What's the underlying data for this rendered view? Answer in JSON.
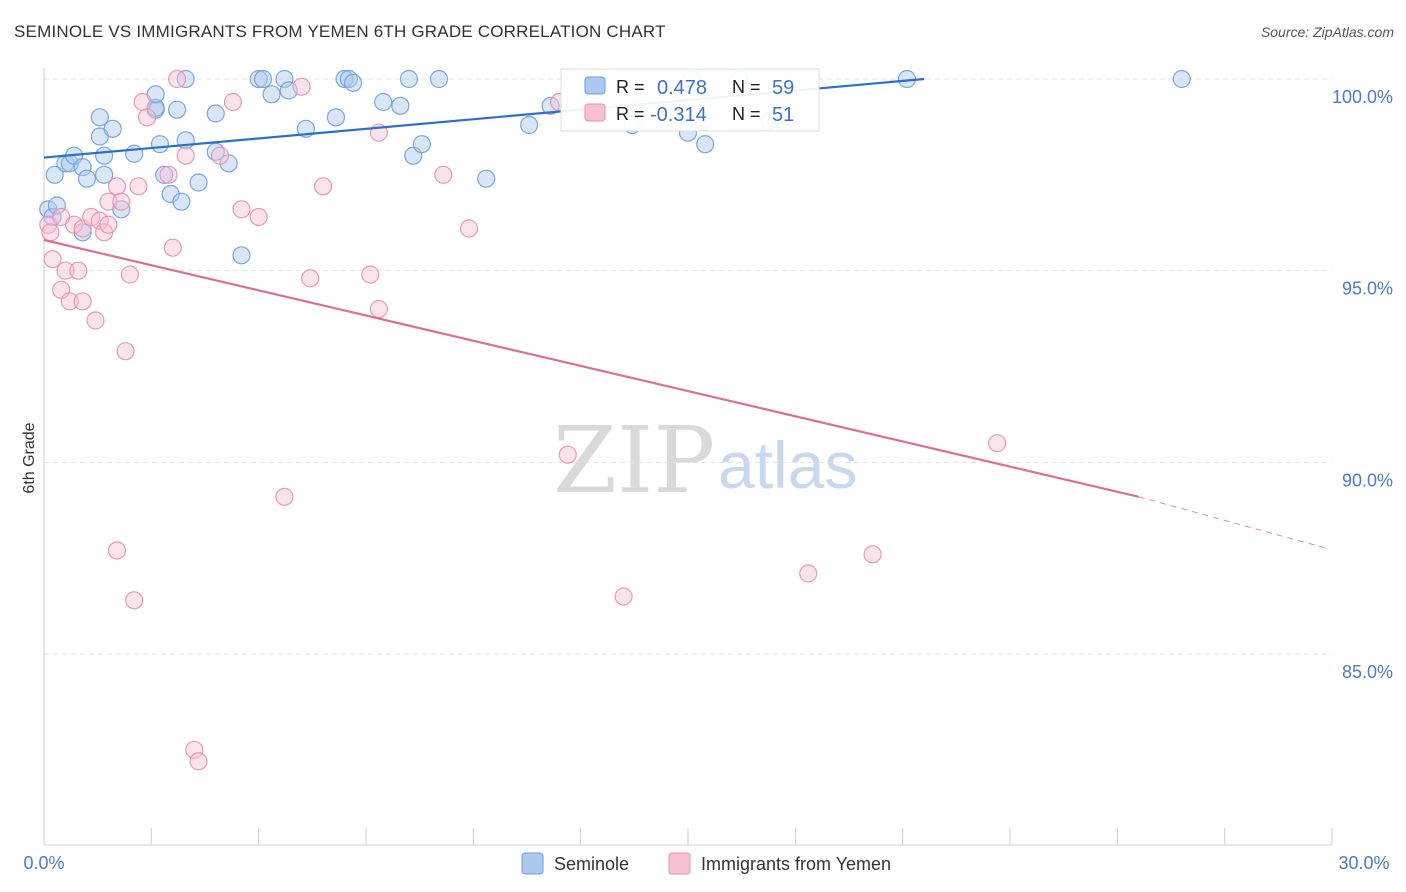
{
  "header": {
    "title": "SEMINOLE VS IMMIGRANTS FROM YEMEN 6TH GRADE CORRELATION CHART",
    "source": "Source: ZipAtlas.com"
  },
  "watermark": {
    "zip": "ZIP",
    "atlas": "atlas"
  },
  "chart_data": {
    "type": "scatter",
    "title": "SEMINOLE VS IMMIGRANTS FROM YEMEN 6TH GRADE CORRELATION CHART",
    "xlabel": "",
    "ylabel": "6th Grade",
    "xlim": [
      0,
      30
    ],
    "ylim": [
      80.5,
      100.8
    ],
    "x_tick_labels": {
      "min": "0.0%",
      "max": "30.0%"
    },
    "y_ticks": [
      {
        "value": 100,
        "label": "100.0%"
      },
      {
        "value": 95,
        "label": "95.0%"
      },
      {
        "value": 90,
        "label": "90.0%"
      },
      {
        "value": 85,
        "label": "85.0%"
      }
    ],
    "grid": true,
    "legend_position": "top-center",
    "stats": {
      "seminole": {
        "r_label": "R =",
        "r": "0.478",
        "n_label": "N =",
        "n": "59"
      },
      "yemen": {
        "r_label": "R =",
        "r": "-0.314",
        "n_label": "N =",
        "n": "51"
      }
    },
    "series": [
      {
        "name": "Seminole",
        "color": "#6a9fe0",
        "fill": "#aac8f0",
        "line_color": "#2b6fce",
        "trend": {
          "x0": 0,
          "y0": 97.95,
          "x1": 20.5,
          "y1": 100.0
        },
        "points": [
          [
            0.1,
            96.6
          ],
          [
            0.2,
            96.4
          ],
          [
            0.3,
            96.7
          ],
          [
            0.25,
            97.5
          ],
          [
            0.5,
            97.8
          ],
          [
            0.6,
            97.8
          ],
          [
            0.7,
            98.0
          ],
          [
            0.9,
            97.7
          ],
          [
            1.0,
            97.4
          ],
          [
            1.3,
            99.0
          ],
          [
            1.3,
            98.5
          ],
          [
            1.6,
            98.7
          ],
          [
            1.4,
            98.0
          ],
          [
            2.1,
            98.05
          ],
          [
            2.6,
            99.2
          ],
          [
            2.6,
            99.25
          ],
          [
            2.6,
            99.6
          ],
          [
            2.7,
            98.3
          ],
          [
            2.8,
            97.5
          ],
          [
            2.95,
            97.0
          ],
          [
            3.1,
            99.2
          ],
          [
            3.2,
            96.8
          ],
          [
            3.3,
            98.4
          ],
          [
            3.3,
            100.0
          ],
          [
            3.6,
            97.3
          ],
          [
            4.0,
            98.1
          ],
          [
            4.0,
            99.1
          ],
          [
            4.3,
            97.8
          ],
          [
            4.6,
            95.4
          ],
          [
            5.0,
            100.0
          ],
          [
            5.1,
            100.0
          ],
          [
            5.3,
            99.6
          ],
          [
            5.6,
            100.0
          ],
          [
            5.7,
            99.7
          ],
          [
            6.1,
            98.7
          ],
          [
            6.8,
            99.0
          ],
          [
            7.0,
            100.0
          ],
          [
            7.1,
            100.0
          ],
          [
            7.2,
            99.9
          ],
          [
            7.9,
            99.4
          ],
          [
            8.3,
            99.3
          ],
          [
            8.5,
            100.0
          ],
          [
            8.6,
            98.0
          ],
          [
            8.8,
            98.3
          ],
          [
            9.2,
            100.0
          ],
          [
            10.3,
            97.4
          ],
          [
            1.8,
            96.6
          ],
          [
            0.9,
            96.0
          ],
          [
            1.4,
            97.5
          ],
          [
            11.3,
            98.8
          ],
          [
            11.8,
            99.3
          ],
          [
            13.7,
            98.8
          ],
          [
            15.0,
            98.6
          ],
          [
            15.1,
            100.0
          ],
          [
            15.4,
            98.3
          ],
          [
            16.2,
            100.0
          ],
          [
            16.9,
            98.9
          ],
          [
            20.1,
            100.0
          ],
          [
            26.5,
            100.0
          ]
        ]
      },
      {
        "name": "Immigrants from Yemen",
        "color": "#e88fae",
        "fill": "#f6c1d3",
        "line_color": "#e06c97",
        "trend": {
          "x0": 0,
          "y0": 95.8,
          "x1": 25.5,
          "y1": 89.1
        },
        "trend_dashed": {
          "x0": 25.5,
          "y0": 89.1,
          "x1": 29.9,
          "y1": 87.75
        },
        "points": [
          [
            0.1,
            96.2
          ],
          [
            0.15,
            96.0
          ],
          [
            0.2,
            95.3
          ],
          [
            0.4,
            96.4
          ],
          [
            0.4,
            94.5
          ],
          [
            0.5,
            95.0
          ],
          [
            0.6,
            94.2
          ],
          [
            0.7,
            96.2
          ],
          [
            0.8,
            95.0
          ],
          [
            0.9,
            94.2
          ],
          [
            0.9,
            96.1
          ],
          [
            1.1,
            96.4
          ],
          [
            1.2,
            93.7
          ],
          [
            1.3,
            96.3
          ],
          [
            1.4,
            96.0
          ],
          [
            1.5,
            96.2
          ],
          [
            1.5,
            96.8
          ],
          [
            1.7,
            97.2
          ],
          [
            1.8,
            96.8
          ],
          [
            1.9,
            92.9
          ],
          [
            2.0,
            94.9
          ],
          [
            2.2,
            97.2
          ],
          [
            2.3,
            99.4
          ],
          [
            2.4,
            99.0
          ],
          [
            2.9,
            97.5
          ],
          [
            3.0,
            95.6
          ],
          [
            3.1,
            100.0
          ],
          [
            3.3,
            98.0
          ],
          [
            3.5,
            82.5
          ],
          [
            3.6,
            82.2
          ],
          [
            4.1,
            98.0
          ],
          [
            4.4,
            99.4
          ],
          [
            4.6,
            96.6
          ],
          [
            5.0,
            96.4
          ],
          [
            5.6,
            89.1
          ],
          [
            6.0,
            99.8
          ],
          [
            6.2,
            94.8
          ],
          [
            6.5,
            97.2
          ],
          [
            7.6,
            94.9
          ],
          [
            7.8,
            98.6
          ],
          [
            7.8,
            94.0
          ],
          [
            9.3,
            97.5
          ],
          [
            9.9,
            96.1
          ],
          [
            12.0,
            99.4
          ],
          [
            12.2,
            90.2
          ],
          [
            13.5,
            86.5
          ],
          [
            17.8,
            87.1
          ],
          [
            19.3,
            87.6
          ],
          [
            22.2,
            90.5
          ],
          [
            1.7,
            87.7
          ],
          [
            2.1,
            86.4
          ]
        ]
      }
    ]
  }
}
